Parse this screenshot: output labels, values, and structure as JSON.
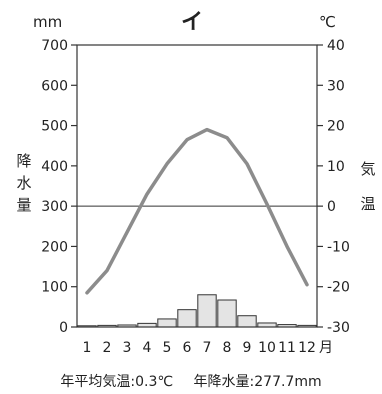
{
  "chart_data": {
    "type": "climograph",
    "title": "イ",
    "categories": [
      "1",
      "2",
      "3",
      "4",
      "5",
      "6",
      "7",
      "8",
      "9",
      "10",
      "11",
      "12"
    ],
    "month_unit": "月",
    "precip_unit": "mm",
    "temp_unit": "℃",
    "left_label": [
      "降",
      "水",
      "量"
    ],
    "right_label": [
      "気",
      "温"
    ],
    "precip_ylim": [
      0,
      700
    ],
    "precip_ticks": [
      0,
      100,
      200,
      300,
      400,
      500,
      600,
      700
    ],
    "temp_ylim": [
      -30,
      40
    ],
    "temp_ticks": [
      -30,
      -20,
      -10,
      0,
      10,
      20,
      30,
      40
    ],
    "series": [
      {
        "name": "降水量",
        "type": "bar",
        "values": [
          3,
          4,
          5,
          9,
          20,
          43,
          80,
          67,
          28,
          10,
          6,
          4
        ]
      },
      {
        "name": "気温",
        "type": "line",
        "values": [
          -21.5,
          -16,
          -6.5,
          3,
          10.5,
          16.5,
          19,
          17,
          10.5,
          0.5,
          -10,
          -19.5
        ]
      }
    ],
    "footer": {
      "mean_temp": "年平均気温:0.3℃",
      "annual_precip": "年降水量:277.7mm"
    },
    "colors": {
      "line": "#8c8c8c",
      "bar_fill": "#e4e4e4",
      "bar_stroke": "#333333",
      "axis": "#333333"
    }
  }
}
